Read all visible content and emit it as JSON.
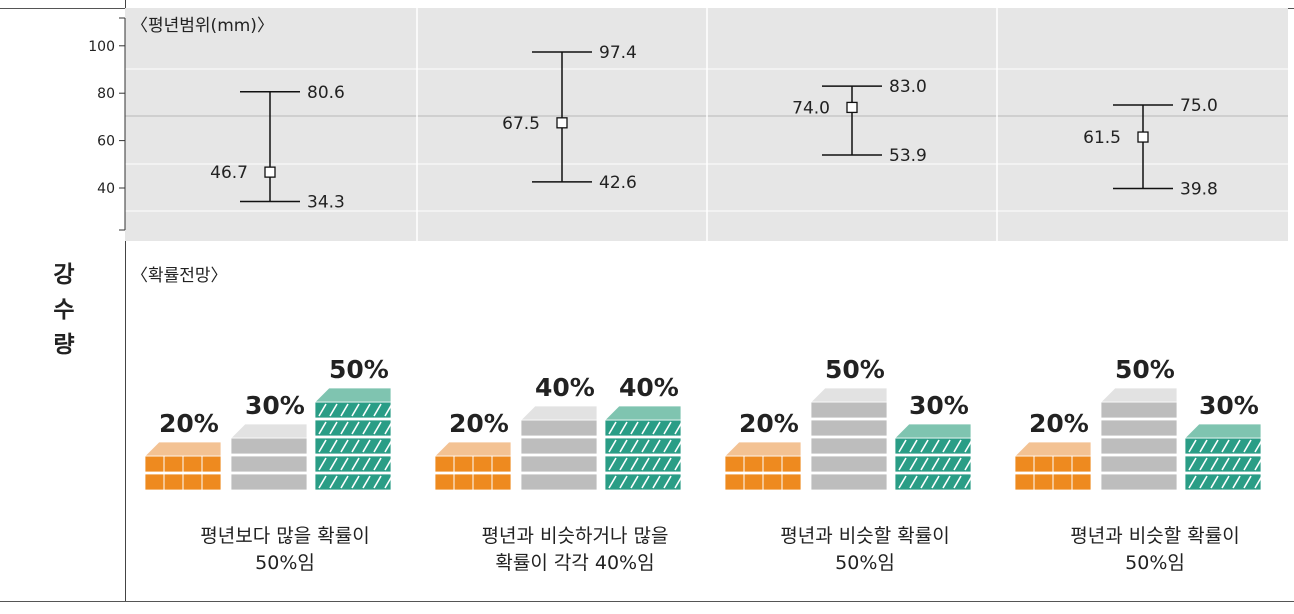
{
  "section_label": [
    "강",
    "수",
    "량"
  ],
  "range_chart": {
    "title": "〈평년범위(mm)〉",
    "yticks": [
      100,
      80,
      60,
      40
    ],
    "ylim": [
      20,
      110
    ],
    "columns": [
      {
        "mid": 46.7,
        "upper": 80.6,
        "lower": 34.3,
        "mid_label": "46.7",
        "upper_label": "80.6",
        "lower_label": "34.3"
      },
      {
        "mid": 67.5,
        "upper": 97.4,
        "lower": 42.6,
        "mid_label": "67.5",
        "upper_label": "97.4",
        "lower_label": "42.6"
      },
      {
        "mid": 74.0,
        "upper": 83.0,
        "lower": 53.9,
        "mid_label": "74.0",
        "upper_label": "83.0",
        "lower_label": "53.9"
      },
      {
        "mid": 61.5,
        "upper": 75.0,
        "lower": 39.8,
        "mid_label": "61.5",
        "upper_label": "75.0",
        "lower_label": "39.8"
      }
    ]
  },
  "prob_title": "〈확률전망〉",
  "prob_groups": [
    {
      "pcts": [
        "20%",
        "30%",
        "50%"
      ],
      "levels": [
        2,
        3,
        5
      ],
      "caption": [
        "평년보다 많을 확률이",
        "50%임"
      ]
    },
    {
      "pcts": [
        "20%",
        "40%",
        "40%"
      ],
      "levels": [
        2,
        4,
        4
      ],
      "caption": [
        "평년과 비슷하거나 많을",
        "확률이 각각 40%임"
      ]
    },
    {
      "pcts": [
        "20%",
        "50%",
        "30%"
      ],
      "levels": [
        2,
        5,
        3
      ],
      "caption": [
        "평년과 비슷할 확률이",
        "50%임"
      ]
    },
    {
      "pcts": [
        "20%",
        "50%",
        "30%"
      ],
      "levels": [
        2,
        5,
        3
      ],
      "caption": [
        "평년과 비슷할 확률이",
        "50%임"
      ]
    }
  ],
  "colors": {
    "panel_bg": "#e6e6e6",
    "orange_top": "#f3c293",
    "orange_front": "#ee8a1f",
    "grey_top": "#e2e2e2",
    "grey_front": "#bdbdbd",
    "teal_top": "#7fc4b0",
    "teal_front": "#2a9d86"
  },
  "chart_data": {
    "type": "scatter",
    "title": "〈평년범위(mm)〉",
    "ylabel": "",
    "ylim": [
      20,
      110
    ],
    "series": [
      {
        "x": [
          1,
          2,
          3,
          4
        ],
        "values": [
          46.7,
          67.5,
          74.0,
          61.5
        ]
      }
    ],
    "upper": [
      80.6,
      97.4,
      83.0,
      75.0
    ],
    "lower": [
      34.3,
      42.6,
      53.9,
      39.8
    ]
  }
}
